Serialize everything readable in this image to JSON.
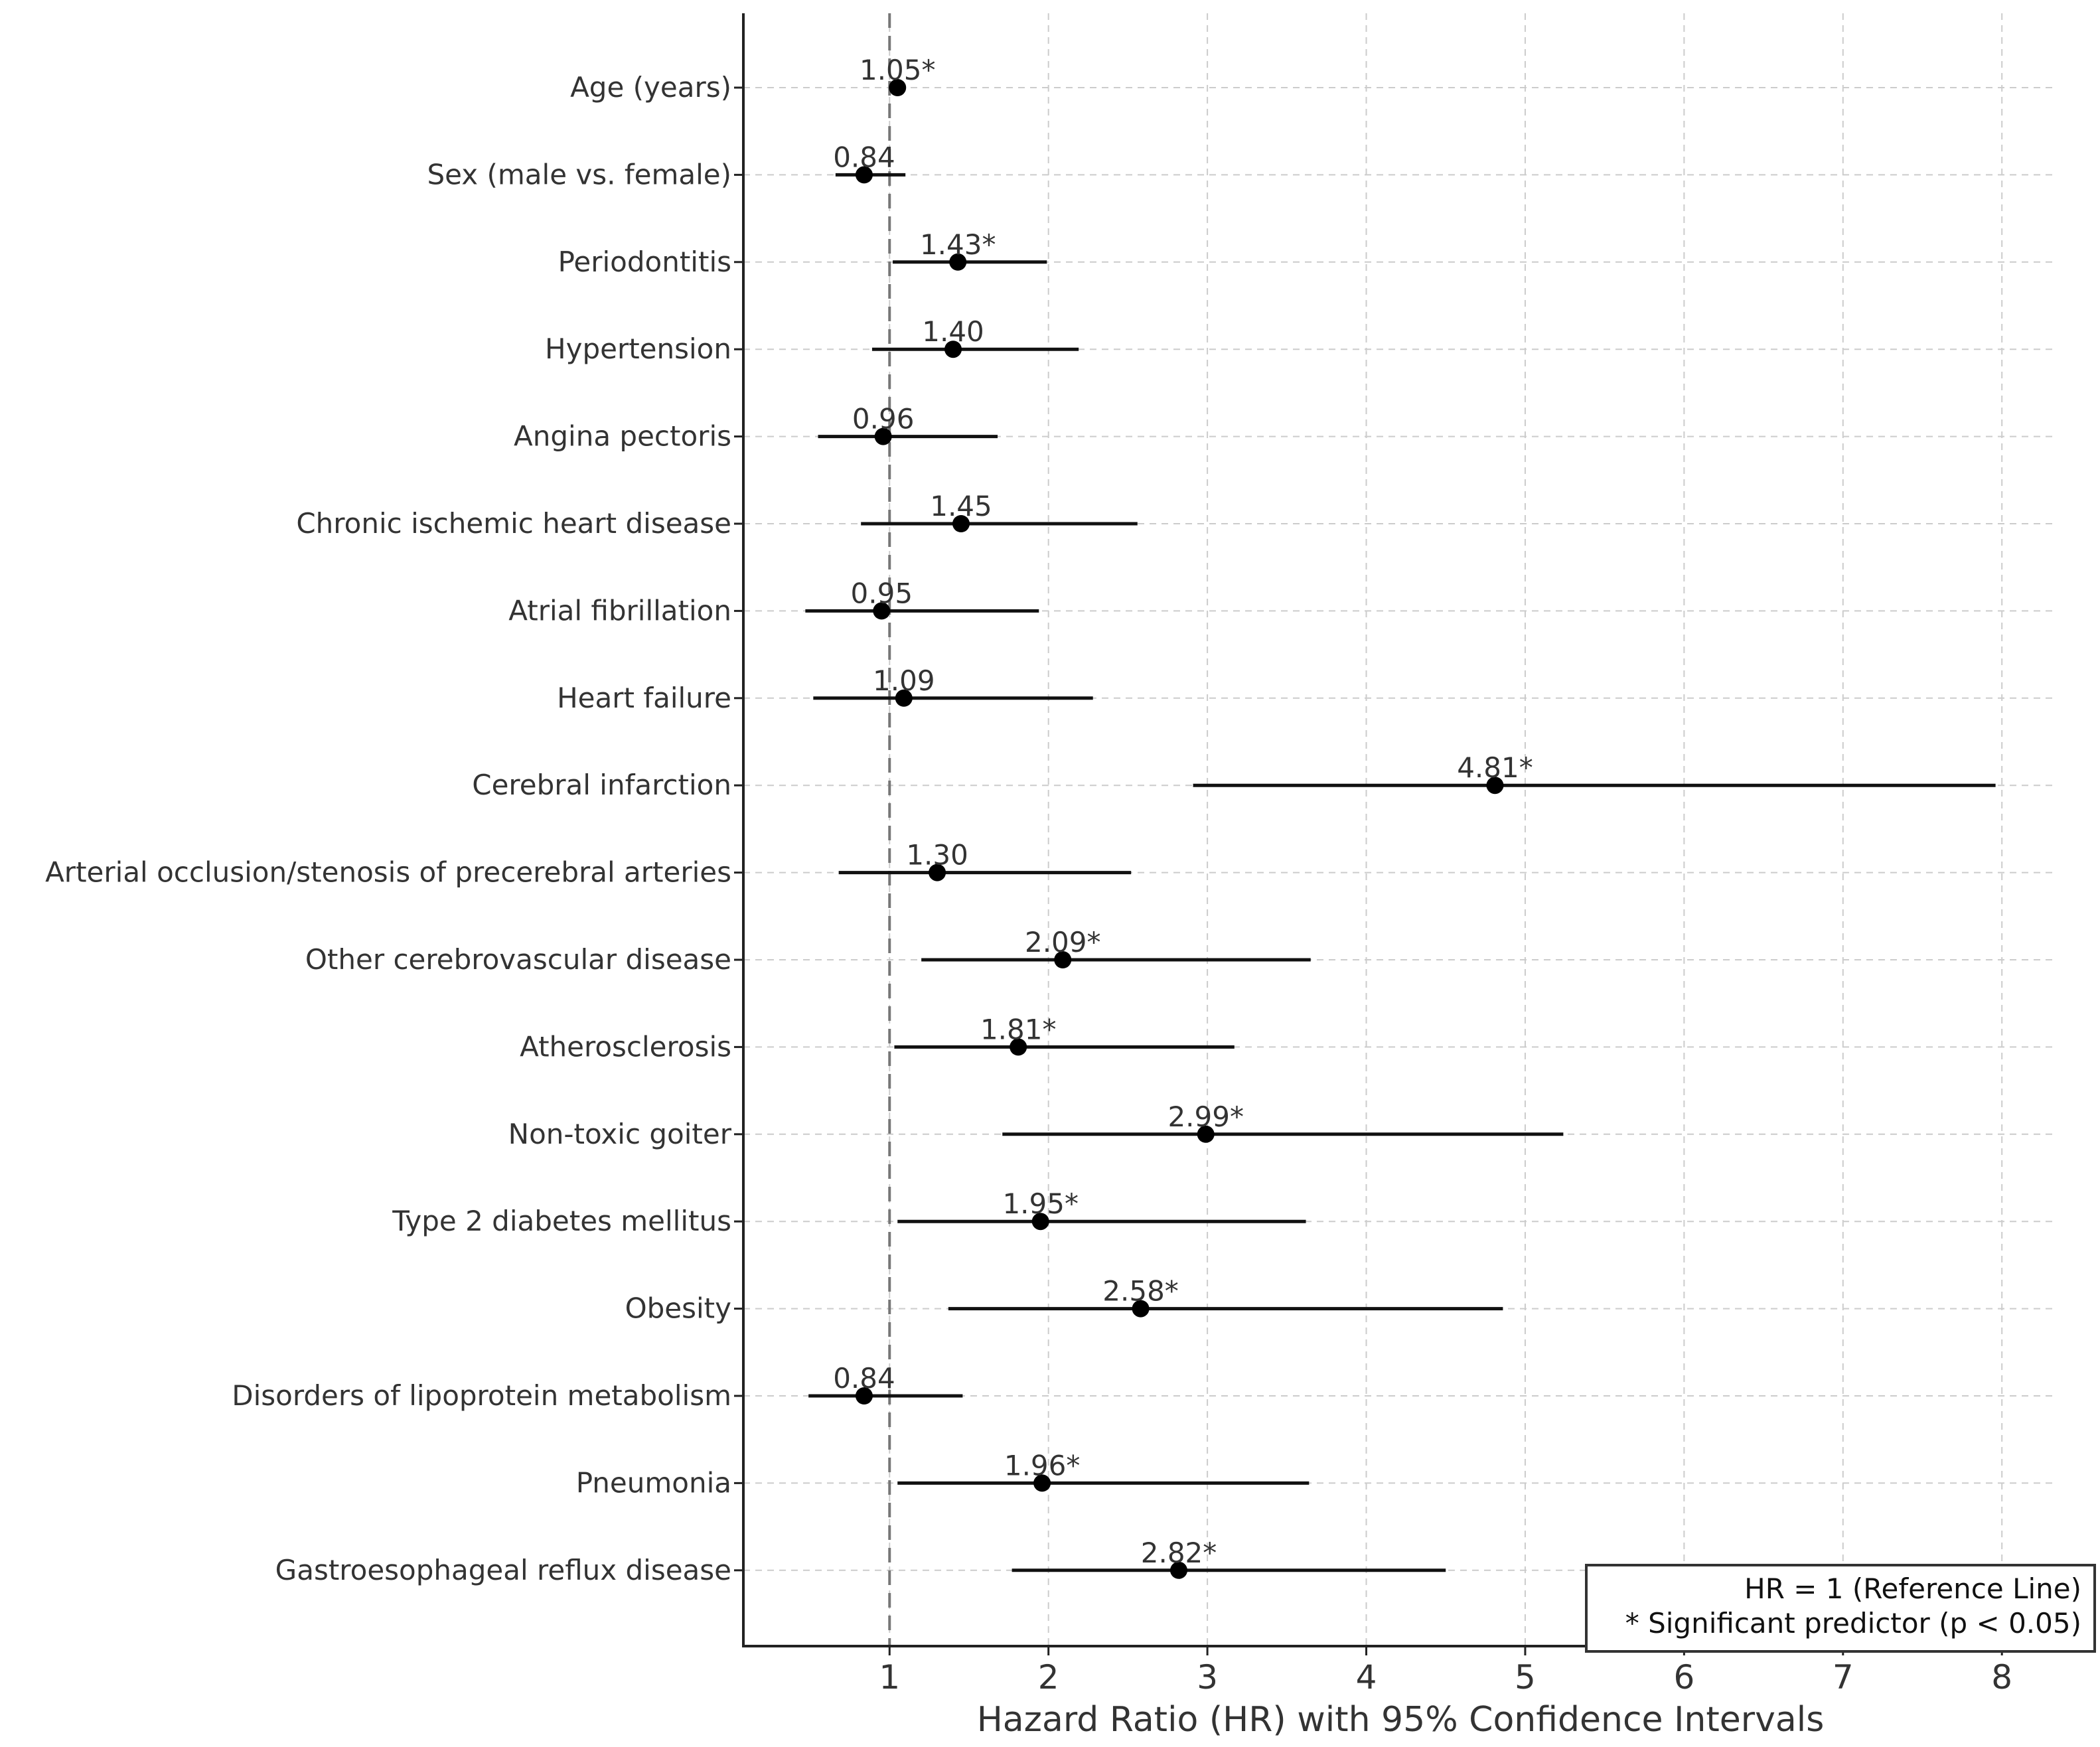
{
  "chart_data": {
    "type": "forest",
    "xlabel": "Hazard Ratio (HR) with 95% Confidence Intervals",
    "xlim": [
      0.08,
      8.35
    ],
    "xticks": [
      1,
      2,
      3,
      4,
      5,
      6,
      7,
      8
    ],
    "xtick_labels": [
      "1",
      "2",
      "3",
      "4",
      "5",
      "6",
      "7",
      "8"
    ],
    "reference_line": 1,
    "grid": true,
    "legend": {
      "position": "bottom-right",
      "lines": [
        "HR = 1 (Reference Line)",
        "* Significant predictor (p < 0.05)"
      ]
    },
    "rows": [
      {
        "label": "Age (years)",
        "hr": 1.05,
        "ci_low": 1.04,
        "ci_high": 1.06,
        "hr_label": "1.05*"
      },
      {
        "label": "Sex (male vs. female)",
        "hr": 0.84,
        "ci_low": 0.66,
        "ci_high": 1.1,
        "hr_label": "0.84"
      },
      {
        "label": "Periodontitis",
        "hr": 1.43,
        "ci_low": 1.02,
        "ci_high": 1.99,
        "hr_label": "1.43*"
      },
      {
        "label": "Hypertension",
        "hr": 1.4,
        "ci_low": 0.89,
        "ci_high": 2.19,
        "hr_label": "1.40"
      },
      {
        "label": "Angina pectoris",
        "hr": 0.96,
        "ci_low": 0.55,
        "ci_high": 1.68,
        "hr_label": "0.96"
      },
      {
        "label": "Chronic ischemic heart disease",
        "hr": 1.45,
        "ci_low": 0.82,
        "ci_high": 2.56,
        "hr_label": "1.45"
      },
      {
        "label": "Atrial fibrillation",
        "hr": 0.95,
        "ci_low": 0.47,
        "ci_high": 1.94,
        "hr_label": "0.95"
      },
      {
        "label": "Heart failure",
        "hr": 1.09,
        "ci_low": 0.52,
        "ci_high": 2.28,
        "hr_label": "1.09"
      },
      {
        "label": "Cerebral infarction",
        "hr": 4.81,
        "ci_low": 2.91,
        "ci_high": 7.96,
        "hr_label": "4.81*"
      },
      {
        "label": "Arterial occlusion/stenosis of precerebral arteries",
        "hr": 1.3,
        "ci_low": 0.68,
        "ci_high": 2.52,
        "hr_label": "1.30"
      },
      {
        "label": "Other cerebrovascular disease",
        "hr": 2.09,
        "ci_low": 1.2,
        "ci_high": 3.65,
        "hr_label": "2.09*"
      },
      {
        "label": "Atherosclerosis",
        "hr": 1.81,
        "ci_low": 1.03,
        "ci_high": 3.17,
        "hr_label": "1.81*"
      },
      {
        "label": "Non-toxic goiter",
        "hr": 2.99,
        "ci_low": 1.71,
        "ci_high": 5.24,
        "hr_label": "2.99*"
      },
      {
        "label": "Type 2 diabetes mellitus",
        "hr": 1.95,
        "ci_low": 1.05,
        "ci_high": 3.62,
        "hr_label": "1.95*"
      },
      {
        "label": "Obesity",
        "hr": 2.58,
        "ci_low": 1.37,
        "ci_high": 4.86,
        "hr_label": "2.58*"
      },
      {
        "label": "Disorders of lipoprotein metabolism",
        "hr": 0.84,
        "ci_low": 0.49,
        "ci_high": 1.46,
        "hr_label": "0.84"
      },
      {
        "label": "Pneumonia",
        "hr": 1.96,
        "ci_low": 1.05,
        "ci_high": 3.64,
        "hr_label": "1.96*"
      },
      {
        "label": "Gastroesophageal reflux disease",
        "hr": 2.82,
        "ci_low": 1.77,
        "ci_high": 4.5,
        "hr_label": "2.82*"
      }
    ]
  }
}
